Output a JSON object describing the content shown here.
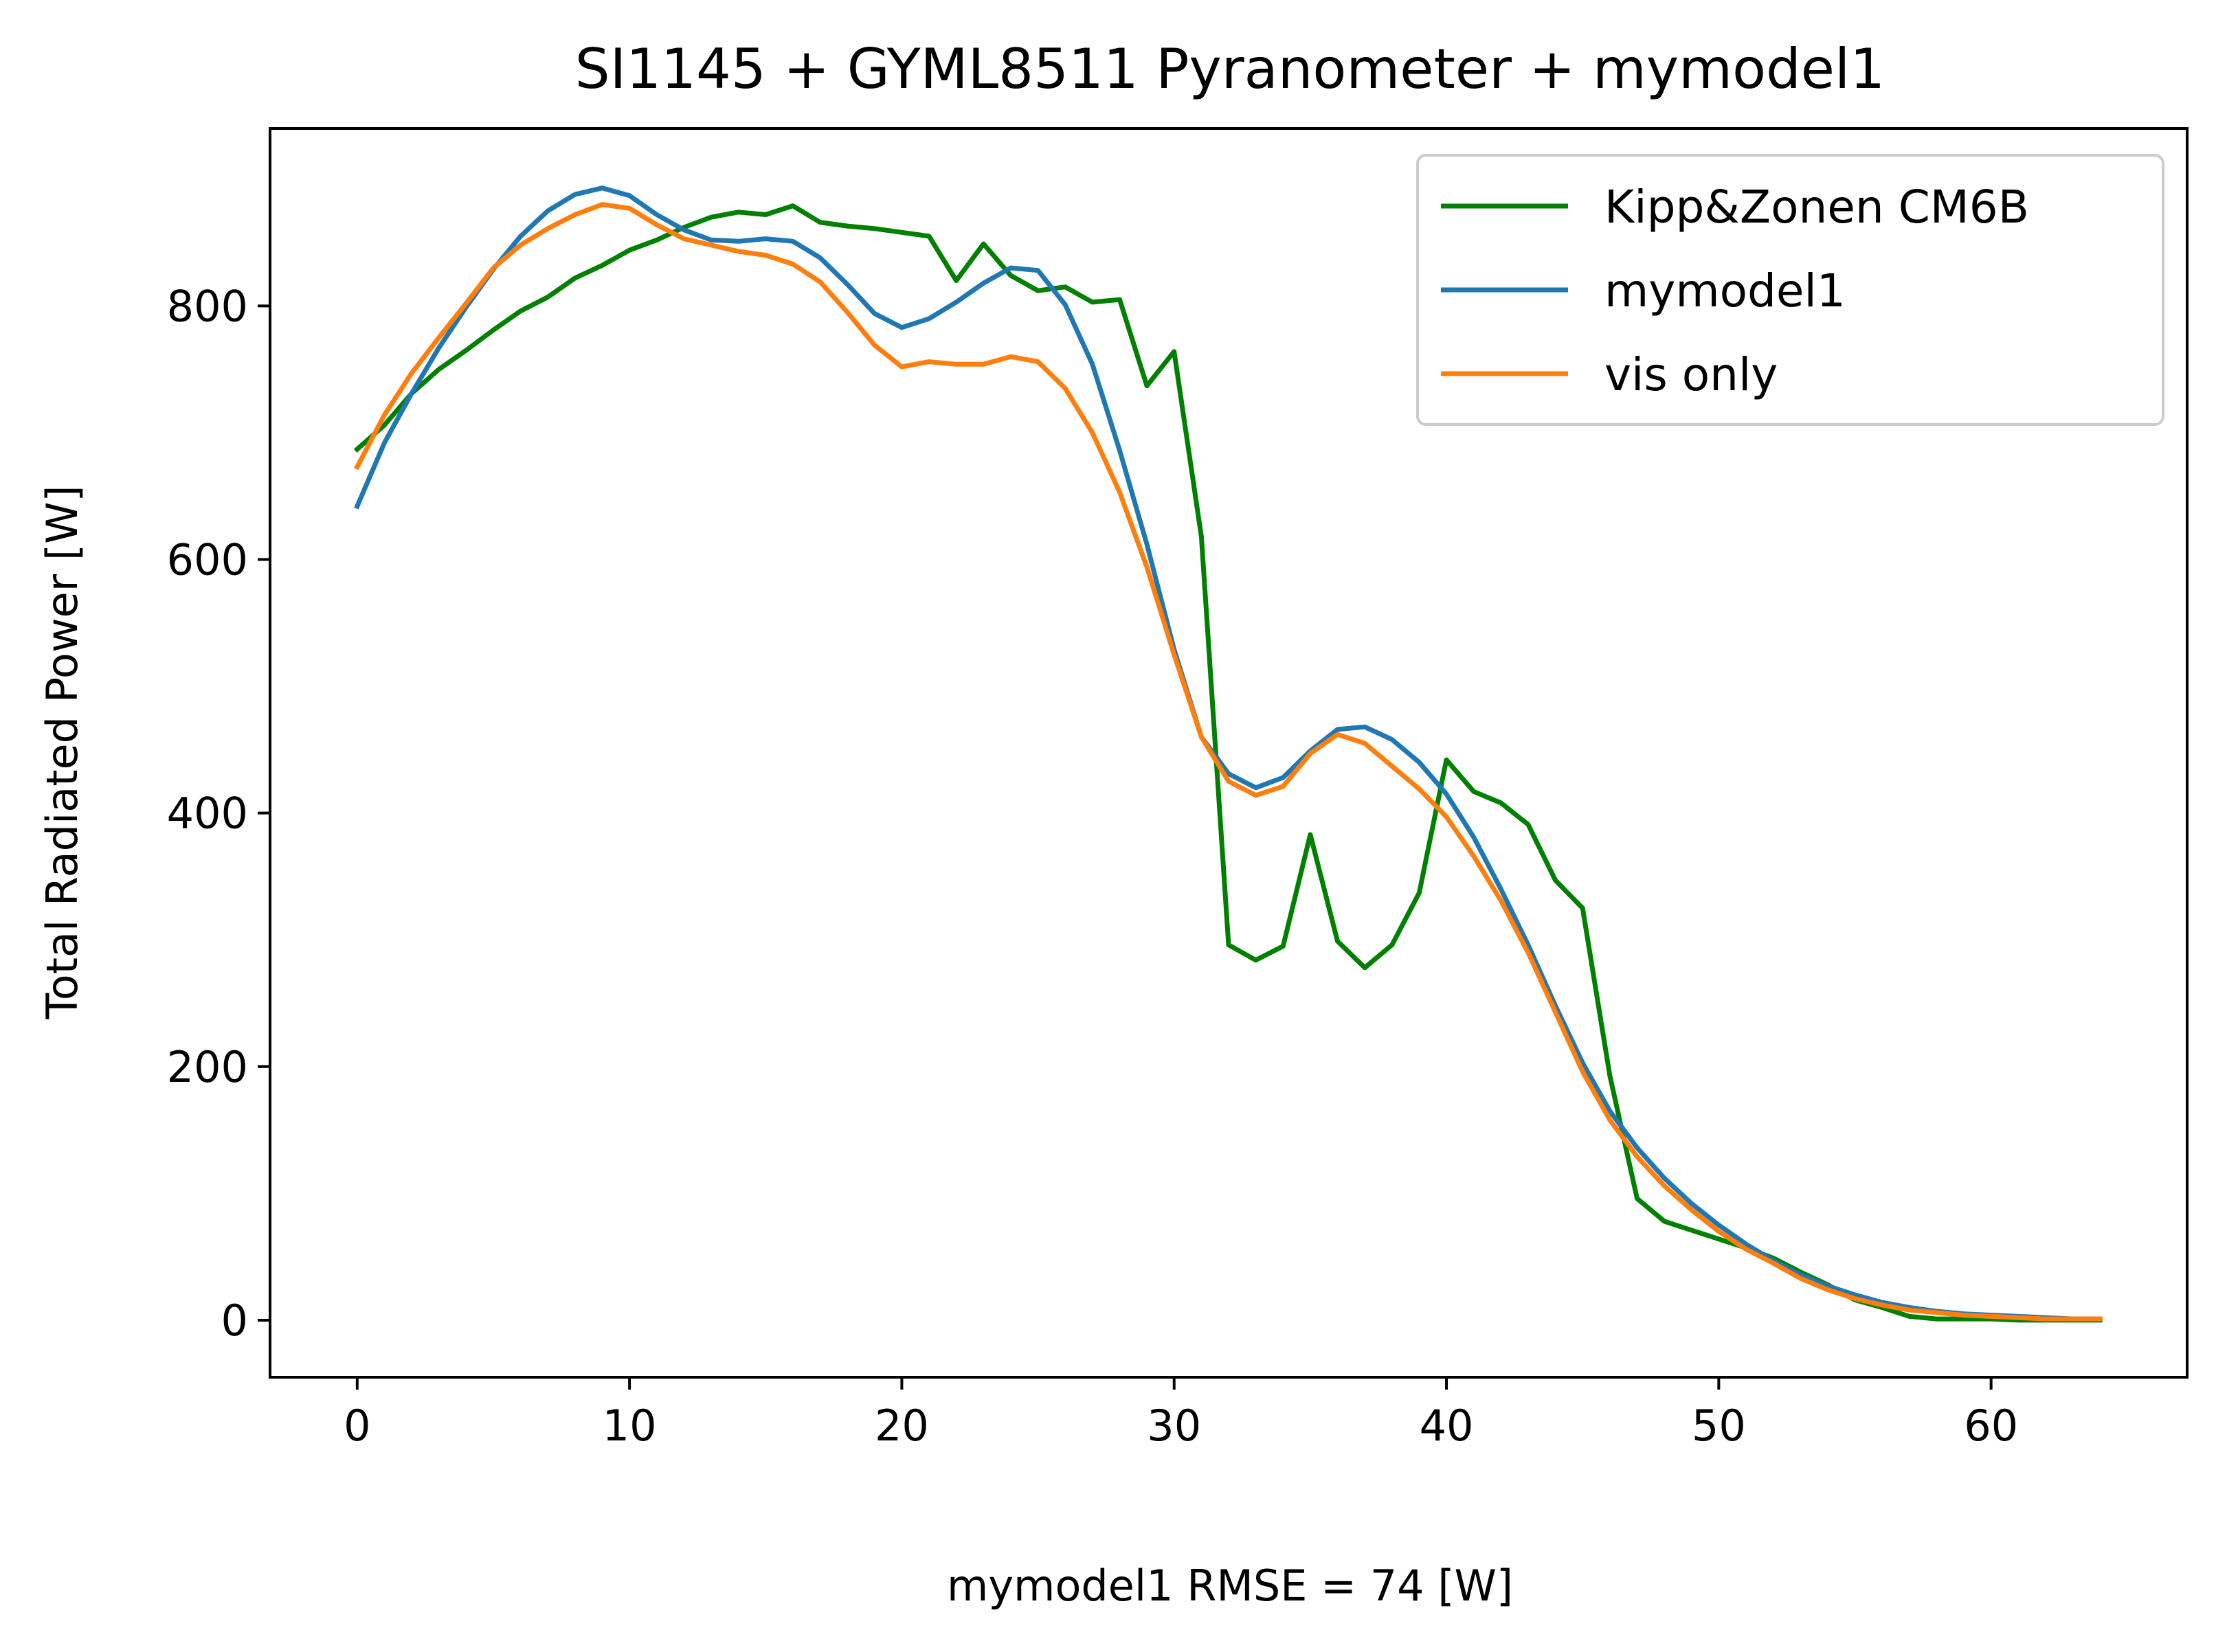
{
  "chart_data": {
    "type": "line",
    "title": "SI1145 + GYML8511 Pyranometer + mymodel1",
    "xlabel": "mymodel1 RMSE = 74 [W]",
    "ylabel": "Total Radiated Power [W]",
    "xlim": [
      -3.2,
      67.2
    ],
    "ylim": [
      -45,
      940
    ],
    "x_ticks": [
      0,
      10,
      20,
      30,
      40,
      50,
      60
    ],
    "y_ticks": [
      0,
      200,
      400,
      600,
      800
    ],
    "grid": false,
    "legend_position": "top-right",
    "x": [
      0,
      1,
      2,
      3,
      4,
      5,
      6,
      7,
      8,
      9,
      10,
      11,
      12,
      13,
      14,
      15,
      16,
      17,
      18,
      19,
      20,
      21,
      22,
      23,
      24,
      25,
      26,
      27,
      28,
      29,
      30,
      31,
      32,
      33,
      34,
      35,
      36,
      37,
      38,
      39,
      40,
      41,
      42,
      43,
      44,
      45,
      46,
      47,
      48,
      49,
      50,
      51,
      52,
      53,
      54,
      55,
      56,
      57,
      58,
      59,
      60,
      61,
      62,
      63,
      64
    ],
    "series": [
      {
        "name": "Kipp&Zonen CM6B",
        "color": "#008000",
        "values": [
          687,
          706,
          731,
          750,
          765,
          781,
          796,
          807,
          822,
          832,
          844,
          852,
          862,
          870,
          874,
          872,
          879,
          866,
          863,
          861,
          858,
          855,
          820,
          849,
          824,
          812,
          815,
          803,
          805,
          737,
          764,
          618,
          296,
          284,
          295,
          383,
          299,
          278,
          296,
          337,
          442,
          417,
          408,
          391,
          347,
          325,
          193,
          96,
          78,
          71,
          64,
          57,
          49,
          38,
          28,
          16,
          10,
          3,
          1,
          1,
          1,
          0,
          0,
          0,
          0
        ],
        "values_note": ""
      },
      {
        "name": "mymodel1",
        "color": "#1f77b4",
        "values": [
          642,
          692,
          731,
          767,
          799,
          829,
          855,
          875,
          888,
          893,
          887,
          872,
          860,
          852,
          851,
          853,
          851,
          838,
          817,
          794,
          783,
          790,
          803,
          818,
          830,
          828,
          801,
          754,
          686,
          612,
          529,
          460,
          431,
          420,
          428,
          449,
          466,
          468,
          458,
          440,
          415,
          381,
          340,
          296,
          248,
          203,
          165,
          136,
          112,
          92,
          75,
          60,
          47,
          36,
          27,
          20,
          14,
          10,
          7,
          5,
          4,
          3,
          2,
          1,
          1
        ]
      },
      {
        "name": "vis only",
        "color": "#ff7f0e",
        "values": [
          673,
          714,
          747,
          775,
          802,
          830,
          848,
          861,
          872,
          880,
          877,
          864,
          853,
          848,
          843,
          840,
          833,
          819,
          795,
          769,
          752,
          756,
          754,
          754,
          760,
          756,
          735,
          700,
          653,
          594,
          525,
          460,
          425,
          414,
          421,
          447,
          462,
          455,
          437,
          419,
          397,
          366,
          331,
          290,
          243,
          196,
          158,
          129,
          106,
          87,
          70,
          56,
          45,
          33,
          24,
          17,
          12,
          8,
          6,
          4,
          3,
          2,
          1,
          1,
          1
        ]
      }
    ]
  }
}
